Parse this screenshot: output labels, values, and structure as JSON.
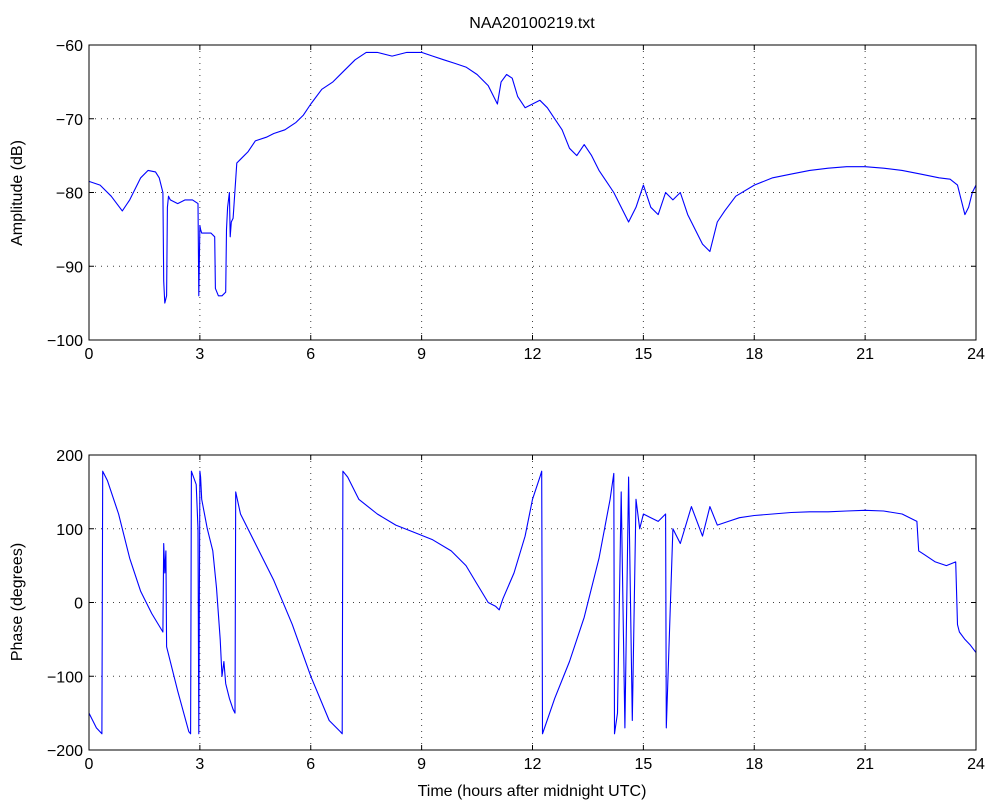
{
  "figure": {
    "title": "NAA20100219.txt",
    "xlabel": "Time (hours after midnight UTC)"
  },
  "chart_data": [
    {
      "type": "line",
      "name": "amplitude-panel",
      "ylabel": "Amplitude (dB)",
      "xlim": [
        0,
        24
      ],
      "ylim": [
        -100,
        -60
      ],
      "xticks": [
        0,
        3,
        6,
        9,
        12,
        15,
        18,
        21,
        24
      ],
      "yticks": [
        -100,
        -90,
        -80,
        -70,
        -60
      ],
      "grid": true,
      "color": "#0000ff",
      "series": [
        {
          "x": [
            0,
            0.3,
            0.6,
            0.9,
            1.1,
            1.4,
            1.6,
            1.8,
            1.9,
            2.0,
            2.02,
            2.05,
            2.1,
            2.12,
            2.15,
            2.2,
            2.4,
            2.6,
            2.8,
            2.95,
            2.97,
            3.0,
            3.02,
            3.05,
            3.3,
            3.4,
            3.42,
            3.5,
            3.6,
            3.7,
            3.72,
            3.75,
            3.8,
            3.82,
            3.85,
            3.9,
            4.0,
            4.1,
            4.3,
            4.5,
            4.8,
            5.0,
            5.3,
            5.6,
            5.8,
            6.0,
            6.3,
            6.6,
            6.9,
            7.2,
            7.5,
            7.8,
            8.2,
            8.6,
            9.0,
            9.3,
            9.6,
            9.9,
            10.2,
            10.5,
            10.8,
            10.95,
            11.05,
            11.15,
            11.3,
            11.45,
            11.6,
            11.8,
            12.0,
            12.2,
            12.4,
            12.6,
            12.8,
            13.0,
            13.2,
            13.4,
            13.6,
            13.8,
            14.0,
            14.2,
            14.4,
            14.6,
            14.8,
            15.0,
            15.2,
            15.4,
            15.6,
            15.8,
            16.0,
            16.2,
            16.4,
            16.6,
            16.8,
            17.0,
            17.2,
            17.5,
            18.0,
            18.5,
            19.0,
            19.5,
            20.0,
            20.5,
            21.0,
            21.5,
            22.0,
            22.5,
            23.0,
            23.3,
            23.5,
            23.6,
            23.7,
            23.8,
            23.9,
            24.0
          ],
          "y": [
            -78.5,
            -79,
            -80.5,
            -82.5,
            -81,
            -78,
            -77,
            -77.2,
            -78,
            -80,
            -92,
            -95,
            -94,
            -82,
            -80.5,
            -81,
            -81.5,
            -81,
            -81,
            -81.5,
            -94,
            -84.5,
            -85,
            -85.5,
            -85.5,
            -86,
            -93,
            -94,
            -94,
            -93.5,
            -85,
            -82,
            -80,
            -86,
            -84,
            -83.5,
            -76,
            -75.5,
            -74.5,
            -73,
            -72.5,
            -72,
            -71.5,
            -70.5,
            -69.5,
            -68,
            -66,
            -65,
            -63.5,
            -62,
            -61,
            -61,
            -61.5,
            -61,
            -61,
            -61.5,
            -62,
            -62.5,
            -63,
            -64,
            -65.5,
            -67,
            -68,
            -65,
            -64,
            -64.5,
            -67,
            -68.5,
            -68,
            -67.5,
            -68.5,
            -70,
            -71.5,
            -74,
            -75,
            -73.5,
            -75,
            -77,
            -78.5,
            -80,
            -82,
            -84,
            -82,
            -79,
            -82,
            -83,
            -80,
            -81,
            -80,
            -83,
            -85,
            -87,
            -88,
            -84,
            -82.5,
            -80.5,
            -79,
            -78,
            -77.5,
            -77,
            -76.7,
            -76.5,
            -76.5,
            -76.7,
            -77,
            -77.5,
            -78,
            -78.2,
            -79,
            -81,
            -83,
            -82,
            -80,
            -79
          ]
        }
      ]
    },
    {
      "type": "line",
      "name": "phase-panel",
      "ylabel": "Phase (degrees)",
      "xlim": [
        0,
        24
      ],
      "ylim": [
        -200,
        200
      ],
      "xticks": [
        0,
        3,
        6,
        9,
        12,
        15,
        18,
        21,
        24
      ],
      "yticks": [
        -200,
        -100,
        0,
        100,
        200
      ],
      "grid": true,
      "color": "#0000ff",
      "series": [
        {
          "x": [
            0,
            0.2,
            0.35,
            0.37,
            0.5,
            0.8,
            1.1,
            1.4,
            1.7,
            2.0,
            2.02,
            2.05,
            2.08,
            2.1,
            2.4,
            2.7,
            2.75,
            2.77,
            2.9,
            2.95,
            2.97,
            3.0,
            3.02,
            3.05,
            3.2,
            3.35,
            3.45,
            3.55,
            3.6,
            3.65,
            3.7,
            3.8,
            3.9,
            3.95,
            3.97,
            4.1,
            4.5,
            5.0,
            5.5,
            6.0,
            6.5,
            6.8,
            6.85,
            6.87,
            7.0,
            7.3,
            7.8,
            8.3,
            8.8,
            9.3,
            9.8,
            10.2,
            10.5,
            10.8,
            11.0,
            11.1,
            11.2,
            11.5,
            11.8,
            12.0,
            12.2,
            12.25,
            12.27,
            12.6,
            13.0,
            13.4,
            13.8,
            14.1,
            14.2,
            14.22,
            14.3,
            14.4,
            14.5,
            14.6,
            14.7,
            14.8,
            14.9,
            15.0,
            15.2,
            15.4,
            15.6,
            15.62,
            15.8,
            16.0,
            16.3,
            16.6,
            16.8,
            17.0,
            17.3,
            17.6,
            18.0,
            18.5,
            19.0,
            19.5,
            20.0,
            20.5,
            21.0,
            21.5,
            22.0,
            22.4,
            22.45,
            22.6,
            22.9,
            23.2,
            23.45,
            23.5,
            23.55,
            23.7,
            23.85,
            24.0
          ],
          "y": [
            -150,
            -170,
            -178,
            178,
            165,
            120,
            60,
            15,
            -15,
            -40,
            80,
            40,
            70,
            -60,
            -120,
            -175,
            -178,
            178,
            160,
            100,
            -178,
            178,
            170,
            140,
            100,
            70,
            20,
            -50,
            -100,
            -80,
            -110,
            -130,
            -145,
            -150,
            150,
            120,
            80,
            30,
            -30,
            -100,
            -160,
            -175,
            -178,
            178,
            170,
            140,
            120,
            105,
            95,
            85,
            70,
            50,
            25,
            0,
            -5,
            -10,
            5,
            40,
            90,
            140,
            170,
            178,
            -178,
            -130,
            -80,
            -20,
            60,
            140,
            175,
            -178,
            -150,
            150,
            -170,
            170,
            -160,
            140,
            100,
            120,
            115,
            110,
            120,
            -170,
            100,
            80,
            130,
            90,
            130,
            105,
            110,
            115,
            118,
            120,
            122,
            123,
            123,
            124,
            125,
            124,
            120,
            110,
            70,
            65,
            55,
            50,
            55,
            -30,
            -40,
            -50,
            -58,
            -68
          ]
        }
      ]
    }
  ]
}
